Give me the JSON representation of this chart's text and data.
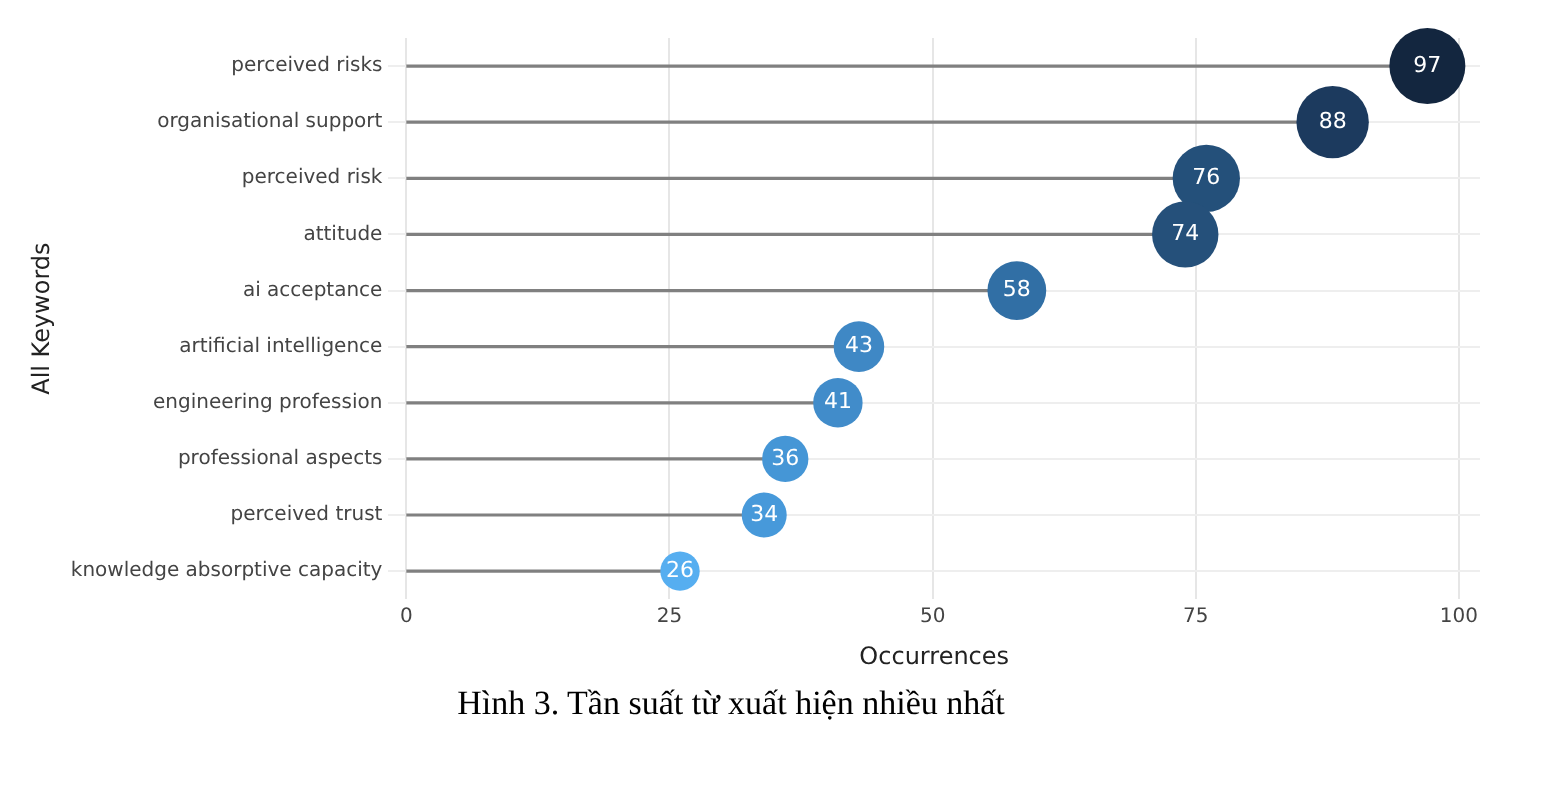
{
  "chart_data": {
    "type": "lollipop",
    "orientation": "horizontal",
    "xlabel": "Occurrences",
    "ylabel": "All Keywords",
    "categories": [
      "perceived risks",
      "organisational support",
      "perceived risk",
      "attitude",
      "ai acceptance",
      "artificial intelligence",
      "engineering profession",
      "professional aspects",
      "perceived trust",
      "knowledge absorptive capacity"
    ],
    "values": [
      97,
      88,
      76,
      74,
      58,
      43,
      41,
      36,
      34,
      26
    ],
    "sizes": [
      1,
      0.907,
      0.784,
      0.763,
      0.598,
      0.443,
      0.423,
      0.371,
      0.351,
      0.268
    ],
    "colors": [
      "#13263f",
      "#1c3a5e",
      "#24507a",
      "#25507a",
      "#316fa5",
      "#3f88c5",
      "#418cca",
      "#4596d6",
      "#4799da",
      "#56aef0"
    ],
    "xlim": [
      -1.7,
      102
    ],
    "xticks": [
      0,
      25,
      50,
      75,
      100
    ],
    "grid": true,
    "data_labels": true,
    "annotations": [
      "Hình 3. Tần suất từ xuất hiện nhiều nhất"
    ]
  }
}
